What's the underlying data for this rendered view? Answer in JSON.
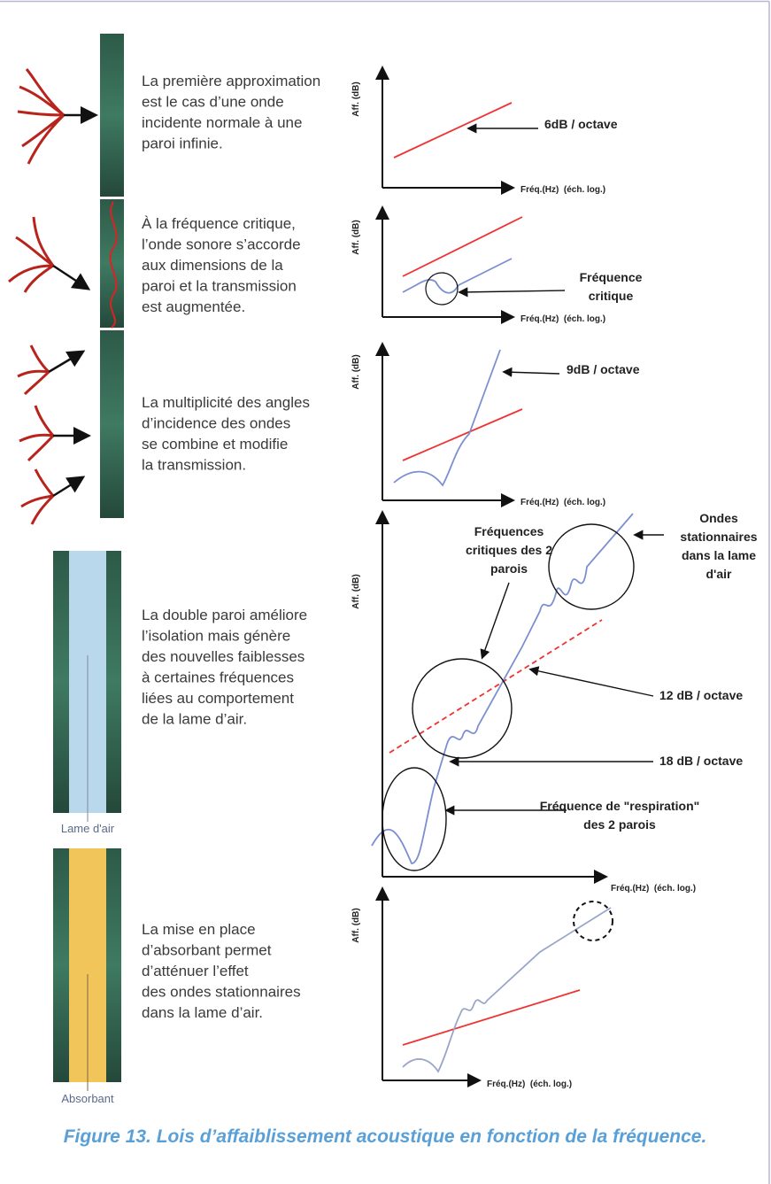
{
  "panels": [
    {
      "text": [
        "La première approximation",
        "est le cas d’une onde",
        "incidente normale à une",
        "paroi infinie."
      ],
      "y_label": "Aff. (dB)",
      "x_label": "Fréq.(Hz)  (éch. log.)",
      "annotations": [
        [
          "6dB / octave"
        ]
      ]
    },
    {
      "text": [
        "À la fréquence critique,",
        "l’onde sonore s’accorde",
        "aux dimensions de la",
        "paroi et la transmission",
        "est augmentée."
      ],
      "y_label": "Aff. (dB)",
      "x_label": "Fréq.(Hz)  (éch. log.)",
      "annotations": [
        [
          "Fréquence",
          "critique"
        ]
      ]
    },
    {
      "text": [
        "La multiplicité des angles",
        "d’incidence des ondes",
        "se combine et modifie",
        "la transmission."
      ],
      "y_label": "Aff. (dB)",
      "x_label": "Fréq.(Hz)  (éch. log.)",
      "annotations": [
        [
          "9dB / octave"
        ]
      ]
    },
    {
      "text": [
        "La double paroi améliore",
        "l’isolation mais génère",
        "des nouvelles faiblesses",
        "à certaines fréquences",
        "liées au comportement",
        "de la lame d’air."
      ],
      "y_label": "Aff. (dB)",
      "x_label": "Fréq.(Hz)  (éch. log.)",
      "wall_label": "Lame d'air",
      "annotations": [
        [
          "Fréquences",
          "critiques des 2",
          "parois"
        ],
        [
          "Ondes",
          "stationnaires",
          "dans la lame",
          "d'air"
        ],
        [
          "12 dB / octave"
        ],
        [
          "18 dB / octave"
        ],
        [
          "Fréquence de \"respiration\"",
          "des 2 parois"
        ]
      ]
    },
    {
      "text": [
        "La mise en place",
        "d’absorbant permet",
        "d’atténuer l’effet",
        "des ondes stationnaires",
        "dans la lame d’air."
      ],
      "y_label": "Aff. (dB)",
      "x_label": "Fréq.(Hz)  (éch. log.)",
      "wall_label": "Absorbant",
      "annotations": []
    }
  ],
  "caption": "Figure 13. Lois d’affaiblissement acoustique en fonction de la fréquence."
}
